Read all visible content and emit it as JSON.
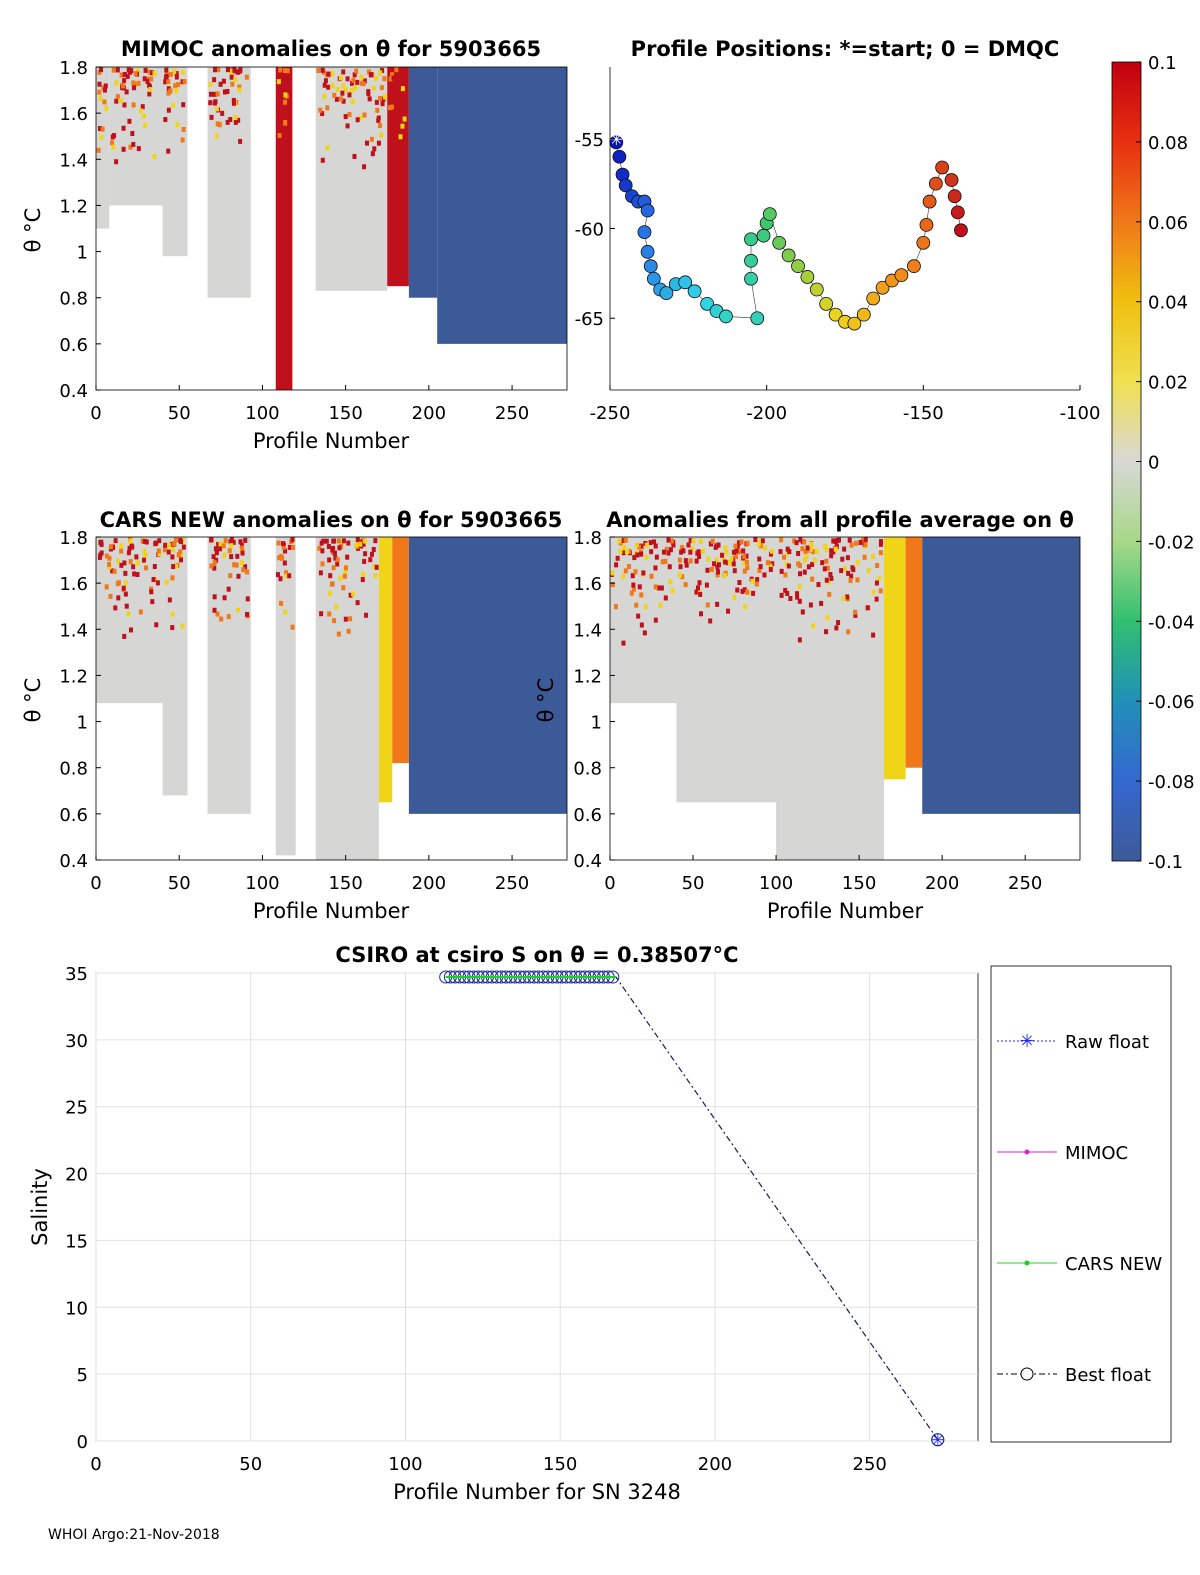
{
  "footer": "WHOI Argo:21-Nov-2018",
  "colorbar": {
    "range": [
      -0.1,
      0.1
    ],
    "tick_labels": [
      "0.1",
      "0.08",
      "0.06",
      "0.04",
      "0.02",
      "0",
      "-0.02",
      "-0.04",
      "-0.06",
      "-0.08",
      "-0.1"
    ]
  },
  "colors": {
    "red": "#c0101c",
    "orange": "#f07818",
    "yellow": "#f0d418",
    "gray": "#d6d6d4",
    "blue": "#3d5a98",
    "cyan": "#30d4e8",
    "navy": "#0a14c0",
    "green": "#2ab850"
  },
  "chart_data": [
    {
      "id": "mimoc",
      "type": "heatmap",
      "title": "MIMOC anomalies on θ  for 5903665",
      "xlabel": "Profile Number",
      "ylabel": "θ °C",
      "xlim": [
        0,
        283
      ],
      "ylim": [
        0.4,
        1.8
      ],
      "xticks": [
        "0",
        "50",
        "100",
        "150",
        "200",
        "250"
      ],
      "yticks": [
        "0.4",
        "0.6",
        "0.8",
        "1",
        "1.2",
        "1.4",
        "1.6",
        "1.8"
      ],
      "bands": [
        {
          "x0": 0,
          "x1": 8,
          "ymin": 1.1,
          "color": "gray"
        },
        {
          "x0": 8,
          "x1": 40,
          "ymin": 1.2,
          "color": "gray"
        },
        {
          "x0": 40,
          "x1": 55,
          "ymin": 0.98,
          "color": "gray"
        },
        {
          "x0": 67,
          "x1": 93,
          "ymin": 0.8,
          "color": "gray"
        },
        {
          "x0": 108,
          "x1": 118,
          "ymin": 0.4,
          "color": "red"
        },
        {
          "x0": 132,
          "x1": 175,
          "ymin": 0.83,
          "color": "gray"
        },
        {
          "x0": 175,
          "x1": 188,
          "ymin": 0.85,
          "color": "red"
        },
        {
          "x0": 188,
          "x1": 205,
          "ymin": 0.8,
          "color": "blue"
        },
        {
          "x0": 205,
          "x1": 283,
          "ymin": 0.6,
          "color": "blue"
        }
      ]
    },
    {
      "id": "positions",
      "type": "scatter",
      "title": "Profile Positions: *=start; 0 = DMQC",
      "xlim": [
        -250,
        -100
      ],
      "ylim": [
        -69,
        -51
      ],
      "xticks": [
        "-250",
        "-200",
        "-150",
        "-100"
      ],
      "yticks": [
        "-55",
        "-60",
        "-65"
      ],
      "start": [
        -248,
        -55
      ],
      "points": [
        [
          -248,
          -55.2
        ],
        [
          -247,
          -56
        ],
        [
          -246,
          -57
        ],
        [
          -245,
          -57.6
        ],
        [
          -243,
          -58.2
        ],
        [
          -241,
          -58.5
        ],
        [
          -239,
          -58.5
        ],
        [
          -238,
          -59
        ],
        [
          -239,
          -60.2
        ],
        [
          -238,
          -61.3
        ],
        [
          -237,
          -62.1
        ],
        [
          -236,
          -62.8
        ],
        [
          -234,
          -63.4
        ],
        [
          -232,
          -63.6
        ],
        [
          -229,
          -63.1
        ],
        [
          -226,
          -63.0
        ],
        [
          -223,
          -63.5
        ],
        [
          -219,
          -64.2
        ],
        [
          -216,
          -64.6
        ],
        [
          -213,
          -64.9
        ],
        [
          -203,
          -65.0
        ],
        [
          -205,
          -62.8
        ],
        [
          -205,
          -61.8
        ],
        [
          -205,
          -60.6
        ],
        [
          -201,
          -60.4
        ],
        [
          -200,
          -59.7
        ],
        [
          -199,
          -59.2
        ],
        [
          -196,
          -60.8
        ],
        [
          -193,
          -61.5
        ],
        [
          -190,
          -62.1
        ],
        [
          -187,
          -62.7
        ],
        [
          -184,
          -63.4
        ],
        [
          -181,
          -64.2
        ],
        [
          -178,
          -64.8
        ],
        [
          -175,
          -65.2
        ],
        [
          -172,
          -65.3
        ],
        [
          -169,
          -64.8
        ],
        [
          -166,
          -63.9
        ],
        [
          -163,
          -63.3
        ],
        [
          -160,
          -62.9
        ],
        [
          -157,
          -62.6
        ],
        [
          -153,
          -62.1
        ],
        [
          -150,
          -60.8
        ],
        [
          -149,
          -59.8
        ],
        [
          -148,
          -58.5
        ],
        [
          -146,
          -57.5
        ],
        [
          -144,
          -56.6
        ],
        [
          -141,
          -57.3
        ],
        [
          -140,
          -58.2
        ],
        [
          -139,
          -59.1
        ],
        [
          -138,
          -60.1
        ]
      ]
    },
    {
      "id": "cars",
      "type": "heatmap",
      "title": "CARS NEW anomalies on θ for 5903665",
      "xlabel": "Profile Number",
      "ylabel": "θ °C",
      "xlim": [
        0,
        283
      ],
      "ylim": [
        0.4,
        1.8
      ],
      "xticks": [
        "0",
        "50",
        "100",
        "150",
        "200",
        "250"
      ],
      "yticks": [
        "0.4",
        "0.6",
        "0.8",
        "1",
        "1.2",
        "1.4",
        "1.6",
        "1.8"
      ],
      "bands": [
        {
          "x0": 0,
          "x1": 40,
          "ymin": 1.08,
          "color": "gray"
        },
        {
          "x0": 40,
          "x1": 55,
          "ymin": 0.68,
          "color": "gray"
        },
        {
          "x0": 67,
          "x1": 93,
          "ymin": 0.6,
          "color": "gray"
        },
        {
          "x0": 108,
          "x1": 120,
          "ymin": 0.42,
          "color": "gray"
        },
        {
          "x0": 132,
          "x1": 170,
          "ymin": 0.4,
          "color": "gray"
        },
        {
          "x0": 170,
          "x1": 178,
          "ymin": 0.65,
          "color": "yellow"
        },
        {
          "x0": 178,
          "x1": 188,
          "ymin": 0.82,
          "color": "orange"
        },
        {
          "x0": 188,
          "x1": 283,
          "ymin": 0.6,
          "color": "blue"
        }
      ]
    },
    {
      "id": "avg",
      "type": "heatmap",
      "title": "Anomalies from all profile average on θ",
      "xlabel": "Profile Number",
      "ylabel": "θ °C",
      "xlim": [
        0,
        283
      ],
      "ylim": [
        0.4,
        1.8
      ],
      "xticks": [
        "0",
        "50",
        "100",
        "150",
        "200",
        "250"
      ],
      "yticks": [
        "0.4",
        "0.6",
        "0.8",
        "1",
        "1.2",
        "1.4",
        "1.6",
        "1.8"
      ],
      "bands": [
        {
          "x0": 0,
          "x1": 40,
          "ymin": 1.08,
          "color": "gray"
        },
        {
          "x0": 40,
          "x1": 100,
          "ymin": 0.65,
          "color": "gray"
        },
        {
          "x0": 100,
          "x1": 165,
          "ymin": 0.4,
          "color": "gray"
        },
        {
          "x0": 165,
          "x1": 178,
          "ymin": 0.75,
          "color": "yellow"
        },
        {
          "x0": 178,
          "x1": 188,
          "ymin": 0.8,
          "color": "orange"
        },
        {
          "x0": 188,
          "x1": 283,
          "ymin": 0.6,
          "color": "blue"
        }
      ]
    },
    {
      "id": "salinity",
      "type": "line",
      "title": "CSIRO at csiro S on θ = 0.38507°C",
      "xlabel": "Profile Number for SN 3248",
      "ylabel": "Salinity",
      "xlim": [
        0,
        285
      ],
      "ylim": [
        0,
        35
      ],
      "xticks": [
        "0",
        "50",
        "100",
        "150",
        "200",
        "250"
      ],
      "yticks": [
        "0",
        "5",
        "10",
        "15",
        "20",
        "25",
        "30",
        "35"
      ],
      "series": [
        {
          "name": "Best float",
          "x": [
            113,
            118,
            123,
            128,
            133,
            138,
            143,
            148,
            153,
            158,
            163,
            168,
            272
          ],
          "y": [
            34.7,
            34.7,
            34.7,
            34.7,
            34.7,
            34.7,
            34.7,
            34.7,
            34.7,
            34.7,
            34.7,
            34.7,
            0.1
          ]
        }
      ],
      "legend": [
        "Raw float",
        "MIMOC",
        "CARS NEW",
        "Best float"
      ]
    }
  ]
}
